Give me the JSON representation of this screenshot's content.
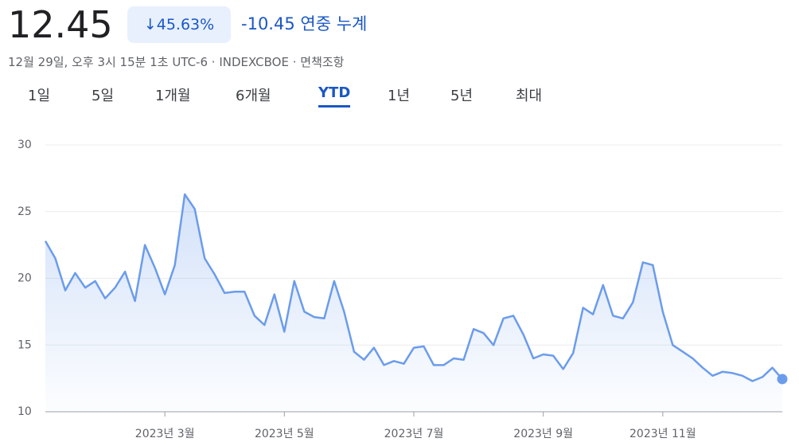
{
  "header": {
    "price": 12.45,
    "change_pct": "45.63%",
    "change": -10.45,
    "period_label": "연중 누계",
    "meta": "12월 29일, 오후 3시 15분 1초 UTC-6 · INDEXCBOE · 면책조항"
  },
  "tabs": [
    "1일",
    "5일",
    "1개월",
    "6개월",
    "YTD",
    "1년",
    "5년",
    "최대"
  ],
  "selected_tab": 4,
  "chart_data": {
    "type": "area",
    "color": "#6b9cec",
    "categories": [
      null,
      null,
      null,
      null,
      null,
      null,
      null,
      null,
      null,
      null,
      null,
      null,
      "2023년 3월",
      null,
      null,
      null,
      null,
      null,
      null,
      null,
      null,
      null,
      null,
      null,
      "2023년 5월",
      null,
      null,
      null,
      null,
      null,
      null,
      null,
      null,
      null,
      null,
      null,
      null,
      "2023년 7월",
      null,
      null,
      null,
      null,
      null,
      null,
      null,
      null,
      null,
      null,
      null,
      null,
      "2023년 9월",
      null,
      null,
      null,
      null,
      null,
      null,
      null,
      null,
      null,
      null,
      null,
      "2023년 11월",
      null,
      null,
      null,
      null,
      null,
      null,
      null,
      null,
      null,
      null,
      null,
      null
    ],
    "values": [
      22.8,
      21.5,
      19.1,
      20.4,
      19.3,
      19.8,
      18.5,
      19.3,
      20.5,
      18.3,
      22.5,
      20.8,
      18.8,
      21,
      26.3,
      25.2,
      21.5,
      20.3,
      18.9,
      19,
      19,
      17.2,
      16.5,
      18.8,
      16,
      19.8,
      17.5,
      17.1,
      17,
      19.8,
      17.5,
      14.5,
      13.9,
      14.8,
      13.5,
      13.8,
      13.6,
      14.8,
      14.9,
      13.5,
      13.5,
      14,
      13.9,
      16.2,
      15.9,
      15,
      17,
      17.2,
      15.8,
      14,
      14.3,
      14.2,
      13.2,
      14.4,
      17.8,
      17.3,
      19.5,
      17.2,
      17,
      18.2,
      21.2,
      21,
      17.5,
      15,
      14.5,
      14,
      13.3,
      12.7,
      13,
      12.9,
      12.7,
      12.3,
      12.6,
      13.3,
      12.45
    ],
    "ylim": [
      10,
      30
    ],
    "yticks": [
      10,
      15,
      20,
      25,
      30
    ],
    "grid": true
  }
}
